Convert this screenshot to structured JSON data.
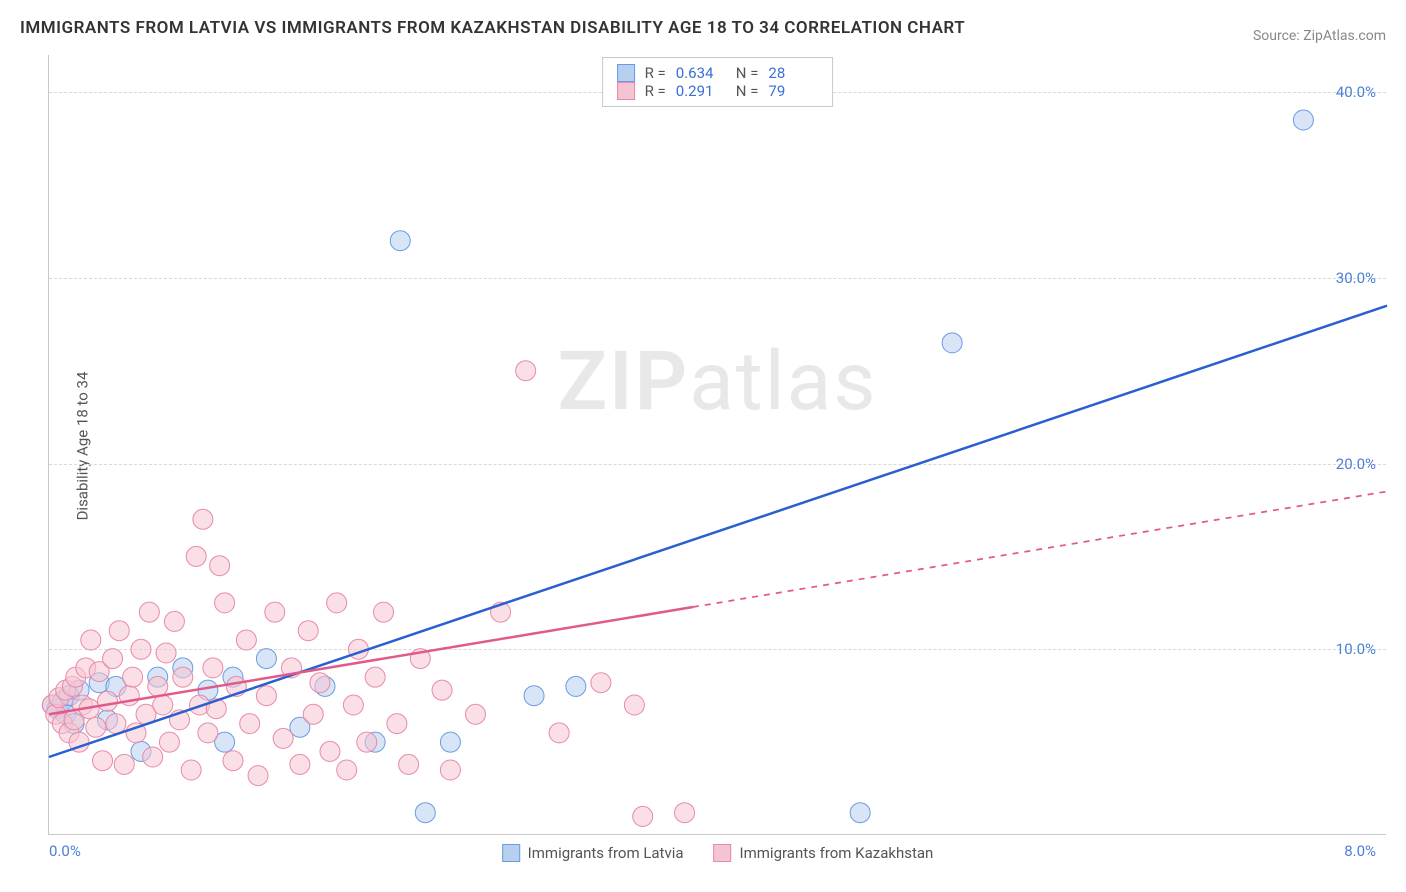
{
  "title": "IMMIGRANTS FROM LATVIA VS IMMIGRANTS FROM KAZAKHSTAN DISABILITY AGE 18 TO 34 CORRELATION CHART",
  "source": "Source: ZipAtlas.com",
  "ylabel": "Disability Age 18 to 34",
  "watermark_bold": "ZIP",
  "watermark_rest": "atlas",
  "chart": {
    "type": "scatter",
    "xlim": [
      0.0,
      8.0
    ],
    "ylim": [
      0.0,
      42.0
    ],
    "x_tick_left": "0.0%",
    "x_tick_right": "8.0%",
    "y_ticks": [
      {
        "v": 10.0,
        "label": "10.0%"
      },
      {
        "v": 20.0,
        "label": "20.0%"
      },
      {
        "v": 30.0,
        "label": "30.0%"
      },
      {
        "v": 40.0,
        "label": "40.0%"
      }
    ],
    "background_color": "#ffffff",
    "grid_color": "#d8d8d8",
    "axis_color": "#c8c8c8",
    "marker_radius": 10,
    "marker_opacity": 0.55,
    "line_width": 2.5,
    "series": [
      {
        "name": "Immigrants from Latvia",
        "color_fill": "#b8d0f0",
        "color_stroke": "#6a9be0",
        "line_color": "#2a5fd0",
        "R": "0.634",
        "N": "28",
        "trend": {
          "x1": 0.0,
          "y1": 4.2,
          "x2": 8.0,
          "y2": 28.5,
          "dash_after_x": 8.0
        },
        "points": [
          [
            0.02,
            7.0
          ],
          [
            0.05,
            6.8
          ],
          [
            0.08,
            7.2
          ],
          [
            0.1,
            6.5
          ],
          [
            0.12,
            7.5
          ],
          [
            0.15,
            6.0
          ],
          [
            0.18,
            7.8
          ],
          [
            0.3,
            8.2
          ],
          [
            0.35,
            6.2
          ],
          [
            0.4,
            8.0
          ],
          [
            0.55,
            4.5
          ],
          [
            0.65,
            8.5
          ],
          [
            0.8,
            9.0
          ],
          [
            0.95,
            7.8
          ],
          [
            1.05,
            5.0
          ],
          [
            1.1,
            8.5
          ],
          [
            1.3,
            9.5
          ],
          [
            1.5,
            5.8
          ],
          [
            1.65,
            8.0
          ],
          [
            1.95,
            5.0
          ],
          [
            2.1,
            32.0
          ],
          [
            2.25,
            1.2
          ],
          [
            2.4,
            5.0
          ],
          [
            2.9,
            7.5
          ],
          [
            3.15,
            8.0
          ],
          [
            4.85,
            1.2
          ],
          [
            5.4,
            26.5
          ],
          [
            7.5,
            38.5
          ]
        ]
      },
      {
        "name": "Immigrants from Kazakhstan",
        "color_fill": "#f5c4d2",
        "color_stroke": "#e88aa8",
        "line_color": "#e05a8a",
        "R": "0.291",
        "N": "79",
        "trend": {
          "x1": 0.0,
          "y1": 6.5,
          "x2": 8.0,
          "y2": 18.5,
          "dash_after_x": 3.85
        },
        "points": [
          [
            0.02,
            7.0
          ],
          [
            0.04,
            6.5
          ],
          [
            0.06,
            7.4
          ],
          [
            0.08,
            6.0
          ],
          [
            0.1,
            7.8
          ],
          [
            0.12,
            5.5
          ],
          [
            0.14,
            8.0
          ],
          [
            0.15,
            6.2
          ],
          [
            0.16,
            8.5
          ],
          [
            0.18,
            5.0
          ],
          [
            0.2,
            7.0
          ],
          [
            0.22,
            9.0
          ],
          [
            0.24,
            6.8
          ],
          [
            0.25,
            10.5
          ],
          [
            0.28,
            5.8
          ],
          [
            0.3,
            8.8
          ],
          [
            0.32,
            4.0
          ],
          [
            0.35,
            7.2
          ],
          [
            0.38,
            9.5
          ],
          [
            0.4,
            6.0
          ],
          [
            0.42,
            11.0
          ],
          [
            0.45,
            3.8
          ],
          [
            0.48,
            7.5
          ],
          [
            0.5,
            8.5
          ],
          [
            0.52,
            5.5
          ],
          [
            0.55,
            10.0
          ],
          [
            0.58,
            6.5
          ],
          [
            0.6,
            12.0
          ],
          [
            0.62,
            4.2
          ],
          [
            0.65,
            8.0
          ],
          [
            0.68,
            7.0
          ],
          [
            0.7,
            9.8
          ],
          [
            0.72,
            5.0
          ],
          [
            0.75,
            11.5
          ],
          [
            0.78,
            6.2
          ],
          [
            0.8,
            8.5
          ],
          [
            0.85,
            3.5
          ],
          [
            0.88,
            15.0
          ],
          [
            0.9,
            7.0
          ],
          [
            0.92,
            17.0
          ],
          [
            0.95,
            5.5
          ],
          [
            0.98,
            9.0
          ],
          [
            1.0,
            6.8
          ],
          [
            1.02,
            14.5
          ],
          [
            1.05,
            12.5
          ],
          [
            1.1,
            4.0
          ],
          [
            1.12,
            8.0
          ],
          [
            1.18,
            10.5
          ],
          [
            1.2,
            6.0
          ],
          [
            1.25,
            3.2
          ],
          [
            1.3,
            7.5
          ],
          [
            1.35,
            12.0
          ],
          [
            1.4,
            5.2
          ],
          [
            1.45,
            9.0
          ],
          [
            1.5,
            3.8
          ],
          [
            1.55,
            11.0
          ],
          [
            1.58,
            6.5
          ],
          [
            1.62,
            8.2
          ],
          [
            1.68,
            4.5
          ],
          [
            1.72,
            12.5
          ],
          [
            1.78,
            3.5
          ],
          [
            1.82,
            7.0
          ],
          [
            1.85,
            10.0
          ],
          [
            1.9,
            5.0
          ],
          [
            1.95,
            8.5
          ],
          [
            2.0,
            12.0
          ],
          [
            2.08,
            6.0
          ],
          [
            2.15,
            3.8
          ],
          [
            2.22,
            9.5
          ],
          [
            2.35,
            7.8
          ],
          [
            2.4,
            3.5
          ],
          [
            2.55,
            6.5
          ],
          [
            2.7,
            12.0
          ],
          [
            2.85,
            25.0
          ],
          [
            3.05,
            5.5
          ],
          [
            3.3,
            8.2
          ],
          [
            3.5,
            7.0
          ],
          [
            3.55,
            1.0
          ],
          [
            3.8,
            1.2
          ]
        ]
      }
    ]
  },
  "legend_bottom": [
    {
      "label": "Immigrants from Latvia",
      "fill": "#b8d0f0",
      "stroke": "#6a9be0"
    },
    {
      "label": "Immigrants from Kazakhstan",
      "fill": "#f5c4d2",
      "stroke": "#e88aa8"
    }
  ],
  "stats_labels": {
    "R": "R  =",
    "N": "N  ="
  }
}
